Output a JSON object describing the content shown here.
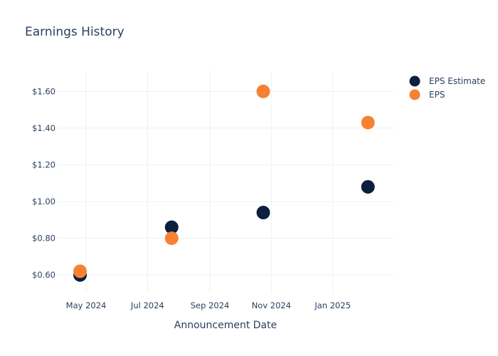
{
  "chart_data": {
    "type": "scatter",
    "title": "Earnings History",
    "xlabel": "Announcement Date",
    "ylabel": "",
    "x_ticks": [
      "May 2024",
      "Jul 2024",
      "Sep 2024",
      "Nov 2024",
      "Jan 2025"
    ],
    "y_ticks": [
      "$0.60",
      "$0.80",
      "$1.00",
      "$1.20",
      "$1.40",
      "$1.60"
    ],
    "x_range": [
      "2024-04-02",
      "2025-03-03"
    ],
    "ylim": [
      0.5,
      1.71
    ],
    "grid": true,
    "legend_position": "top-right",
    "series": [
      {
        "name": "EPS Estimate",
        "color": "#0b1f3f",
        "points": [
          {
            "x": "2024-04-25",
            "y": 0.6
          },
          {
            "x": "2024-07-25",
            "y": 0.86
          },
          {
            "x": "2024-10-24",
            "y": 0.94
          },
          {
            "x": "2025-02-05",
            "y": 1.08
          }
        ]
      },
      {
        "name": "EPS",
        "color": "#f58233",
        "points": [
          {
            "x": "2024-04-25",
            "y": 0.62
          },
          {
            "x": "2024-07-25",
            "y": 0.8
          },
          {
            "x": "2024-10-24",
            "y": 1.6
          },
          {
            "x": "2025-02-05",
            "y": 1.43
          }
        ]
      }
    ]
  }
}
